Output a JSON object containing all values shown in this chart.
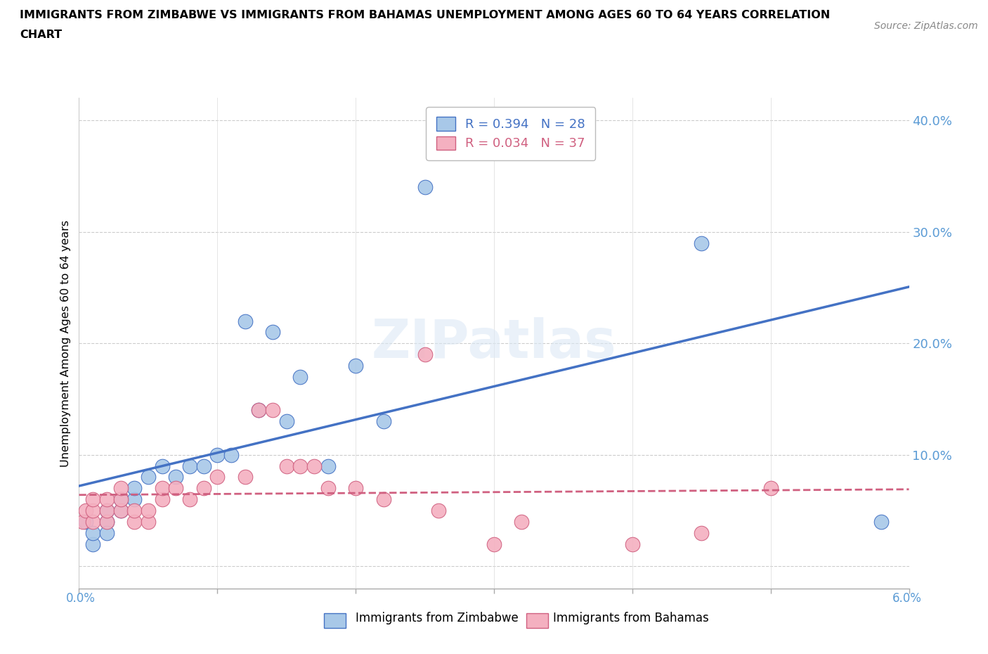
{
  "title_line1": "IMMIGRANTS FROM ZIMBABWE VS IMMIGRANTS FROM BAHAMAS UNEMPLOYMENT AMONG AGES 60 TO 64 YEARS CORRELATION",
  "title_line2": "CHART",
  "source": "Source: ZipAtlas.com",
  "ylabel": "Unemployment Among Ages 60 to 64 years",
  "xlim": [
    0.0,
    0.06
  ],
  "ylim": [
    -0.02,
    0.42
  ],
  "yticks": [
    0.0,
    0.1,
    0.2,
    0.3,
    0.4
  ],
  "ytick_labels": [
    "",
    "10.0%",
    "20.0%",
    "30.0%",
    "40.0%"
  ],
  "xticks": [
    0.0,
    0.01,
    0.02,
    0.03,
    0.04,
    0.05,
    0.06
  ],
  "legend_r_zim": "R = 0.394",
  "legend_n_zim": "N = 28",
  "legend_r_bah": "R = 0.034",
  "legend_n_bah": "N = 37",
  "color_zim": "#a8c8e8",
  "color_bah": "#f4b0c0",
  "line_color_zim": "#4472c4",
  "line_color_bah": "#d06080",
  "watermark": "ZIPatlas",
  "zim_x": [
    0.0005,
    0.001,
    0.001,
    0.002,
    0.002,
    0.002,
    0.003,
    0.003,
    0.004,
    0.004,
    0.005,
    0.006,
    0.007,
    0.008,
    0.009,
    0.01,
    0.011,
    0.012,
    0.013,
    0.014,
    0.015,
    0.016,
    0.018,
    0.02,
    0.022,
    0.025,
    0.045,
    0.058
  ],
  "zim_y": [
    0.04,
    0.02,
    0.03,
    0.04,
    0.03,
    0.05,
    0.05,
    0.06,
    0.06,
    0.07,
    0.08,
    0.09,
    0.08,
    0.09,
    0.09,
    0.1,
    0.1,
    0.22,
    0.14,
    0.21,
    0.13,
    0.17,
    0.09,
    0.18,
    0.13,
    0.34,
    0.29,
    0.04
  ],
  "bah_x": [
    0.0003,
    0.0005,
    0.001,
    0.001,
    0.001,
    0.002,
    0.002,
    0.002,
    0.003,
    0.003,
    0.003,
    0.004,
    0.004,
    0.005,
    0.005,
    0.006,
    0.006,
    0.007,
    0.008,
    0.009,
    0.01,
    0.012,
    0.013,
    0.014,
    0.015,
    0.016,
    0.017,
    0.018,
    0.02,
    0.022,
    0.025,
    0.026,
    0.03,
    0.032,
    0.04,
    0.045,
    0.05
  ],
  "bah_y": [
    0.04,
    0.05,
    0.04,
    0.05,
    0.06,
    0.04,
    0.05,
    0.06,
    0.05,
    0.06,
    0.07,
    0.04,
    0.05,
    0.04,
    0.05,
    0.06,
    0.07,
    0.07,
    0.06,
    0.07,
    0.08,
    0.08,
    0.14,
    0.14,
    0.09,
    0.09,
    0.09,
    0.07,
    0.07,
    0.06,
    0.19,
    0.05,
    0.02,
    0.04,
    0.02,
    0.03,
    0.07
  ]
}
